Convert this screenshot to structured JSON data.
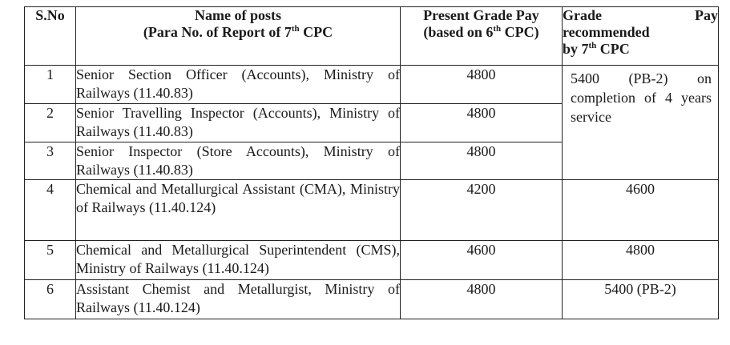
{
  "headers": {
    "sno": "S.No",
    "name_line1": "Name of posts",
    "name_line2_prefix": "(Para No. of Report of 7",
    "name_sup": "th",
    "name_line2_suffix": " CPC",
    "present_line1": "Present Grade Pay",
    "present_line2_prefix": "(based on 6",
    "present_sup": "th",
    "present_line2_suffix": " CPC)",
    "rec_word1": "Grade",
    "rec_word2": "Pay",
    "rec_line2": "recommended",
    "rec_line3_prefix": "by 7",
    "rec_sup": "th",
    "rec_line3_suffix": " CPC"
  },
  "rows": [
    {
      "sno": "1",
      "name": "Senior Section Officer (Accounts), Ministry of Railways (11.40.83)",
      "present": "4800"
    },
    {
      "sno": "2",
      "name": "Senior Travelling Inspector (Accounts), Ministry of Railways (11.40.83)",
      "present": "4800"
    },
    {
      "sno": "3",
      "name": "Senior Inspector (Store Accounts), Ministry of Railways (11.40.83)",
      "present": "4800"
    },
    {
      "sno": "4",
      "name": "Chemical and Metallurgical Assistant (CMA), Ministry of Railways (11.40.124)",
      "present": "4200",
      "recommended": "4600"
    },
    {
      "sno": "5",
      "name": "Chemical and Metallurgical Superintendent (CMS), Ministry of Railways (11.40.124)",
      "present": "4600",
      "recommended": "4800"
    },
    {
      "sno": "6",
      "name": "Assistant Chemist and Metallurgist, Ministry of Railways (11.40.124)",
      "present": "4800",
      "recommended": "5400 (PB-2)"
    }
  ],
  "merged_recommended": "5400 (PB-2) on completion of 4 years service"
}
